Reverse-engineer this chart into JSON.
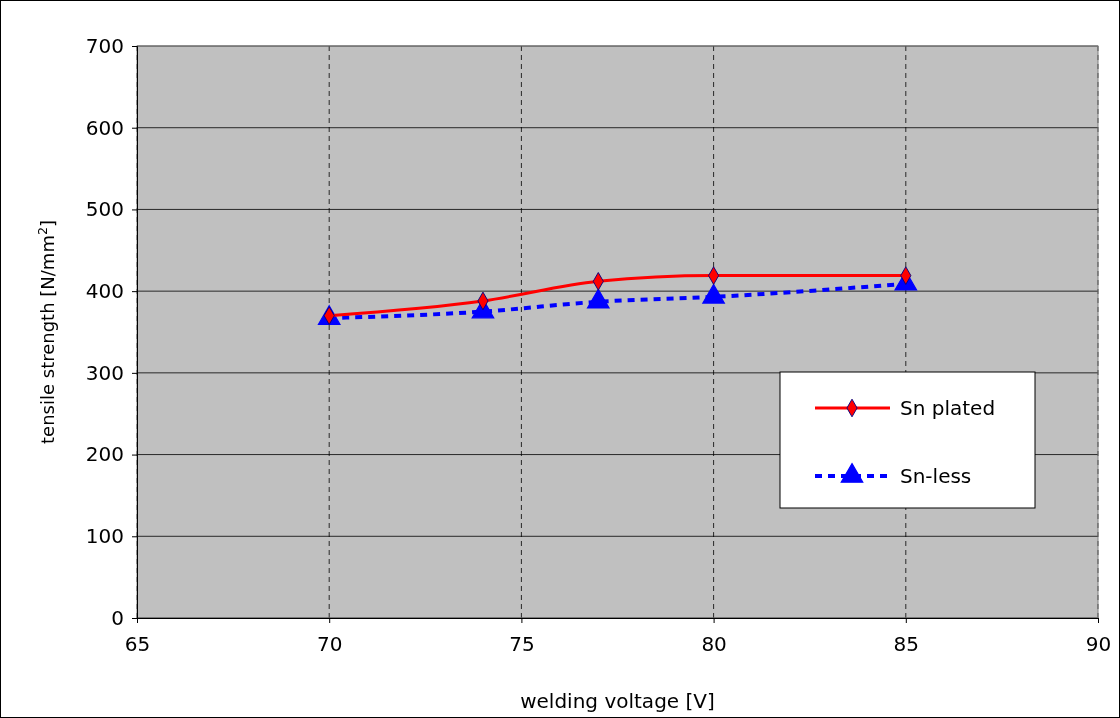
{
  "chart_data": {
    "type": "line",
    "xlabel": "welding voltage [V]",
    "ylabel": "tensile strength [N/mm$^{2}$]",
    "xlim": [
      65,
      90
    ],
    "xticks": [
      65,
      70,
      75,
      80,
      85,
      90
    ],
    "ylim": [
      0,
      700
    ],
    "yticks": [
      0,
      100,
      200,
      300,
      400,
      500,
      600,
      700
    ],
    "grid": true,
    "legend": "right",
    "series": [
      {
        "name": "Sn plated",
        "color": "#ff0000",
        "x": [
          70,
          74,
          77,
          80,
          85
        ],
        "values": [
          370,
          388,
          412,
          419,
          419
        ],
        "marker": "diamond",
        "line_style": "solid"
      },
      {
        "name": "Sn-less",
        "color": "#0000ff",
        "x": [
          70,
          74,
          77,
          80,
          85
        ],
        "values": [
          367,
          375,
          387,
          393,
          409
        ],
        "marker": "triangle",
        "line_style": "dashed"
      }
    ]
  }
}
